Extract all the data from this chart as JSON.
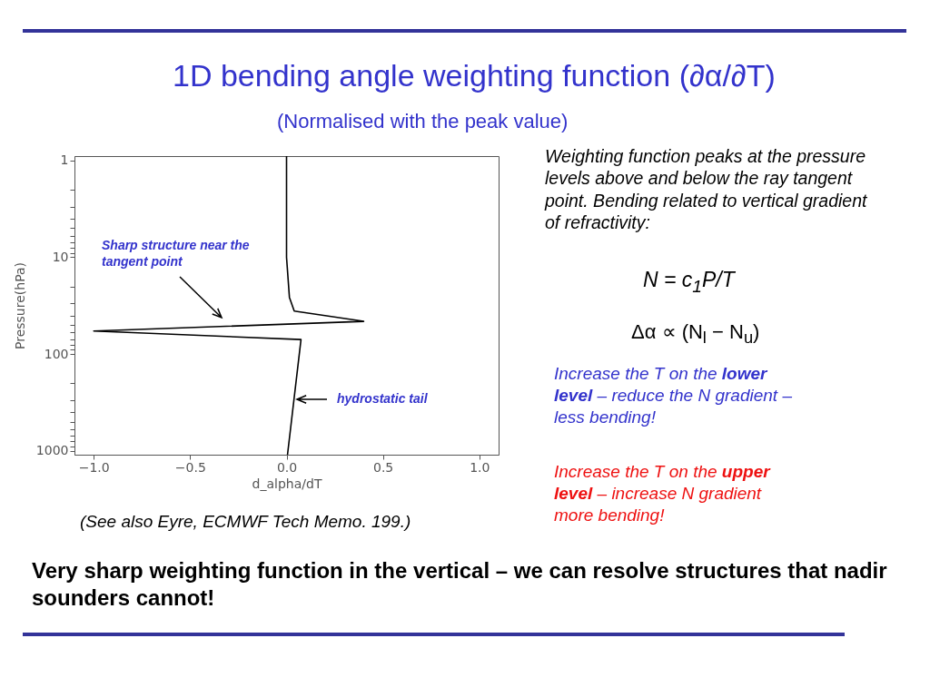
{
  "chart_data": {
    "type": "line",
    "title": "1D bending angle weighting function (∂α/∂T)",
    "subtitle": "(Normalised with the peak value)",
    "xlabel": "d_alpha/dT",
    "ylabel": "Pressure(hPa)",
    "series": [
      {
        "color": "#000000",
        "x": [
          0,
          0,
          0.015,
          0.04,
          0.4,
          -1.0,
          0.075,
          0.005
        ],
        "values": [
          0.9,
          10,
          26,
          36,
          46,
          58,
          71,
          1100
        ]
      }
    ],
    "xlim": [
      -1.1,
      1.1
    ],
    "ylim": [
      1100,
      0.9
    ],
    "log": "y",
    "line_style": "solid",
    "xticks": [
      {
        "value": -1,
        "label": "−1.0"
      },
      {
        "value": -0.5,
        "label": "−0.5"
      },
      {
        "value": 0,
        "label": "0.0"
      },
      {
        "value": 0.5,
        "label": "0.5"
      },
      {
        "value": 1,
        "label": "1.0"
      }
    ],
    "yticks": [
      1,
      {
        "value": 2,
        "label": null
      },
      {
        "value": 3,
        "label": null
      },
      {
        "value": 4,
        "label": null
      },
      {
        "value": 5,
        "label": null
      },
      {
        "value": 6,
        "label": null
      },
      {
        "value": 7,
        "label": null
      },
      {
        "value": 8,
        "label": null
      },
      {
        "value": 9,
        "label": null
      },
      10,
      {
        "value": 20,
        "label": null
      },
      {
        "value": 30,
        "label": null
      },
      {
        "value": 40,
        "label": null
      },
      {
        "value": 50,
        "label": null
      },
      {
        "value": 60,
        "label": null
      },
      {
        "value": 70,
        "label": null
      },
      {
        "value": 80,
        "label": null
      },
      {
        "value": 90,
        "label": null
      },
      100,
      {
        "value": 200,
        "label": null
      },
      {
        "value": 300,
        "label": null
      },
      {
        "value": 400,
        "label": null
      },
      {
        "value": 500,
        "label": null
      },
      {
        "value": 600,
        "label": null
      },
      {
        "value": 700,
        "label": null
      },
      {
        "value": 800,
        "label": null
      },
      {
        "value": 900,
        "label": null
      },
      1000
    ],
    "annotations": [
      "Sharp structure near the tangent point",
      "hydrostatic tail",
      "Weighting function peaks at the pressure levels above and below the ray tangent point. Bending related to vertical gradient of refractivity:",
      "N = c$_{1}$P/T",
      "Δα ∝ (N$_{l}$ − N$_{u}$)",
      "Increase the T on the",
      "lower level",
      "– reduce the N gradient – less bending!",
      "Increase the T on the",
      "upper  level",
      "– increase N gradient more bending!",
      "(See also Eyre, ECMWF Tech Memo. 199.)",
      "Very sharp weighting function in the vertical – we can resolve structures that nadir sounders cannot!"
    ]
  }
}
